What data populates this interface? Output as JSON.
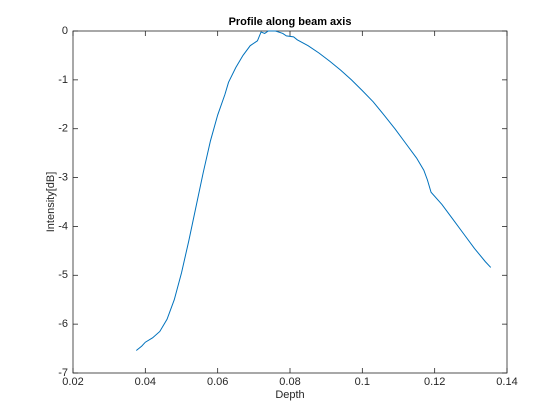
{
  "chart_data": {
    "type": "line",
    "title": "Profile along beam axis",
    "xlabel": "Depth",
    "ylabel": "Intensity[dB]",
    "x": [
      0.0375,
      0.039,
      0.04,
      0.042,
      0.044,
      0.046,
      0.048,
      0.05,
      0.052,
      0.054,
      0.056,
      0.058,
      0.06,
      0.062,
      0.063,
      0.065,
      0.067,
      0.069,
      0.071,
      0.072,
      0.073,
      0.074,
      0.076,
      0.078,
      0.079,
      0.081,
      0.082,
      0.085,
      0.088,
      0.091,
      0.094,
      0.097,
      0.1,
      0.103,
      0.106,
      0.109,
      0.112,
      0.115,
      0.117,
      0.118,
      0.119,
      0.122,
      0.125,
      0.128,
      0.131,
      0.134,
      0.1355
    ],
    "series": [
      {
        "color": "#0072bd",
        "values": [
          -6.54,
          -6.45,
          -6.37,
          -6.28,
          -6.15,
          -5.9,
          -5.5,
          -4.95,
          -4.3,
          -3.6,
          -2.9,
          -2.25,
          -1.72,
          -1.3,
          -1.05,
          -0.75,
          -0.5,
          -0.3,
          -0.2,
          -0.02,
          -0.05,
          0,
          0,
          -0.05,
          -0.1,
          -0.12,
          -0.18,
          -0.3,
          -0.45,
          -0.62,
          -0.8,
          -1.0,
          -1.22,
          -1.45,
          -1.72,
          -2.0,
          -2.3,
          -2.6,
          -2.85,
          -3.05,
          -3.3,
          -3.55,
          -3.85,
          -4.15,
          -4.45,
          -4.72,
          -4.84
        ]
      }
    ],
    "xlim": [
      0.02,
      0.14
    ],
    "xticks": [
      0.02,
      0.04,
      0.06,
      0.08,
      0.1,
      0.12,
      0.14
    ],
    "ylim": [
      -7,
      0
    ],
    "yticks": [
      -7,
      -6,
      -5,
      -4,
      -3,
      -2,
      -1,
      0
    ],
    "grid": false
  }
}
